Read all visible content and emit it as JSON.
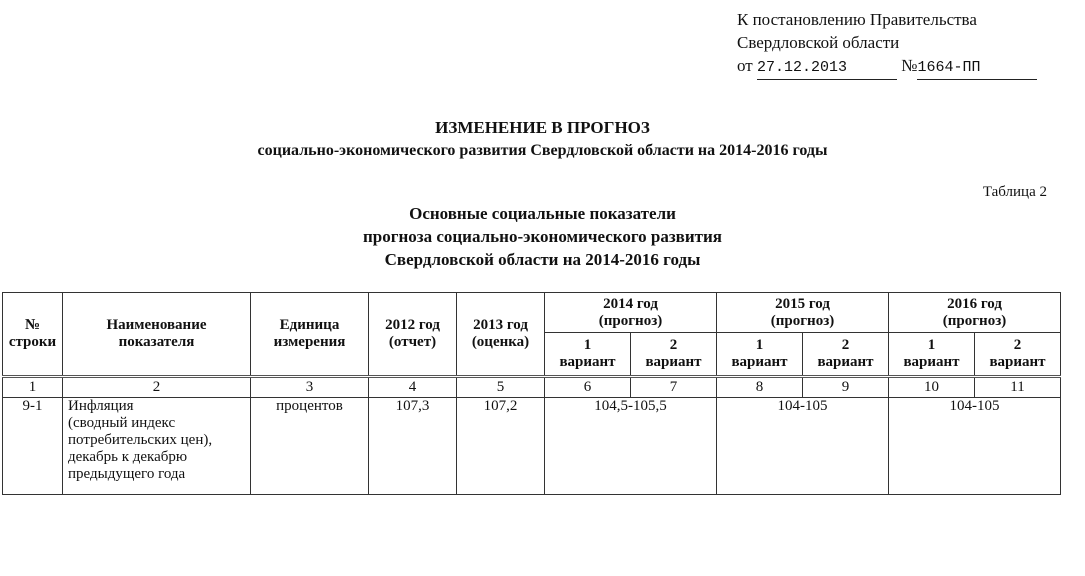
{
  "approval": {
    "line1": "К постановлению Правительства",
    "line2": "Свердловской области",
    "from_label": "от",
    "date": "27.12.2013",
    "number_label": "№",
    "number": "1664-ПП"
  },
  "title": {
    "line1": "ИЗМЕНЕНИЕ В ПРОГНОЗ",
    "line2": "социально-экономического развития Свердловской области на 2014-2016 годы"
  },
  "table_label": "Таблица 2",
  "subtitle": {
    "line1": "Основные социальные показатели",
    "line2": "прогноза социально-экономического развития",
    "line3": "Свердловской области на 2014-2016 годы"
  },
  "table": {
    "headers": {
      "row_no": [
        "№",
        "строки"
      ],
      "name": [
        "Наименование",
        "показателя"
      ],
      "unit": [
        "Единица",
        "измерения"
      ],
      "y2012": [
        "2012 год",
        "(отчет)"
      ],
      "y2013": [
        "2013 год",
        "(оценка)"
      ],
      "y2014": [
        "2014 год",
        "(прогноз)"
      ],
      "y2015": [
        "2015 год",
        "(прогноз)"
      ],
      "y2016": [
        "2016 год",
        "(прогноз)"
      ],
      "variant1": [
        "1",
        "вариант"
      ],
      "variant2": [
        "2",
        "вариант"
      ]
    },
    "column_numbers": [
      "1",
      "2",
      "3",
      "4",
      "5",
      "6",
      "7",
      "8",
      "9",
      "10",
      "11"
    ],
    "rows": [
      {
        "no": "9-1",
        "name": [
          "Инфляция",
          "(сводный индекс",
          "потребительских  цен),",
          "декабрь к декабрю",
          "предыдущего года"
        ],
        "unit": "процентов",
        "y2012": "107,3",
        "y2013": "107,2",
        "y2014": "104,5-105,5",
        "y2015": "104-105",
        "y2016": "104-105"
      }
    ]
  }
}
